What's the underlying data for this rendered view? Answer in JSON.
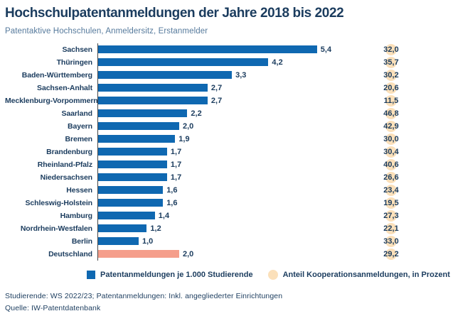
{
  "header": {
    "title": "Hochschulpatentanmeldungen der Jahre 2018 bis 2022",
    "subtitle": "Patentaktive Hochschulen, Anmeldersitz, Erstanmelder"
  },
  "chart_data": {
    "type": "bar",
    "orientation": "horizontal",
    "categories": [
      "Sachsen",
      "Thüringen",
      "Baden-Württemberg",
      "Sachsen-Anhalt",
      "Mecklenburg-Vorpommern",
      "Saarland",
      "Bayern",
      "Bremen",
      "Brandenburg",
      "Rheinland-Pfalz",
      "Niedersachsen",
      "Hessen",
      "Schleswig-Holstein",
      "Hamburg",
      "Nordrhein-Westfalen",
      "Berlin",
      "Deutschland"
    ],
    "series": [
      {
        "name": "Patentanmeldungen je 1.000 Studierende",
        "values": [
          5.4,
          4.2,
          3.3,
          2.7,
          2.7,
          2.2,
          2.0,
          1.9,
          1.7,
          1.7,
          1.7,
          1.6,
          1.6,
          1.4,
          1.2,
          1.0,
          2.0
        ],
        "labels": [
          "5,4",
          "4,2",
          "3,3",
          "2,7",
          "2,7",
          "2,2",
          "2,0",
          "1,9",
          "1,7",
          "1,7",
          "1,7",
          "1,6",
          "1,6",
          "1,4",
          "1,2",
          "1,0",
          "2,0"
        ]
      },
      {
        "name": "Anteil Kooperationsanmeldungen, in Prozent",
        "values": [
          32.0,
          35.7,
          30.2,
          20.6,
          11.5,
          46.8,
          42.9,
          30.0,
          30.4,
          40.6,
          26.6,
          23.4,
          19.5,
          27.3,
          22.1,
          33.0,
          29.2
        ],
        "labels": [
          "32,0",
          "35,7",
          "30,2",
          "20,6",
          "11,5",
          "46,8",
          "42,9",
          "30,0",
          "30,4",
          "40,6",
          "26,6",
          "23,4",
          "19,5",
          "27,3",
          "22,1",
          "33,0",
          "29,2"
        ]
      }
    ],
    "highlight_category": "Deutschland",
    "xlim": [
      0,
      5.8
    ],
    "grid": false,
    "legend_position": "bottom",
    "colors": {
      "bar": "#0f68b1",
      "highlight_bar": "#f59e8b",
      "coop_circle": "#fbe0ba",
      "text": "#1b3c5e",
      "subtitle": "#567a9c",
      "axis": "#474747"
    }
  },
  "legend": {
    "items": [
      {
        "label": "Patentanmeldungen je 1.000 Studierende",
        "shape": "square",
        "color": "#0f68b1"
      },
      {
        "label": "Anteil Kooperationsanmeldungen, in Prozent",
        "shape": "circle",
        "color": "#fbe0ba"
      }
    ]
  },
  "footnotes": [
    "Studierende: WS 2022/23; Patentanmeldungen: Inkl. angegliederter Einrichtungen",
    "Quelle: IW-Patentdatenbank"
  ]
}
